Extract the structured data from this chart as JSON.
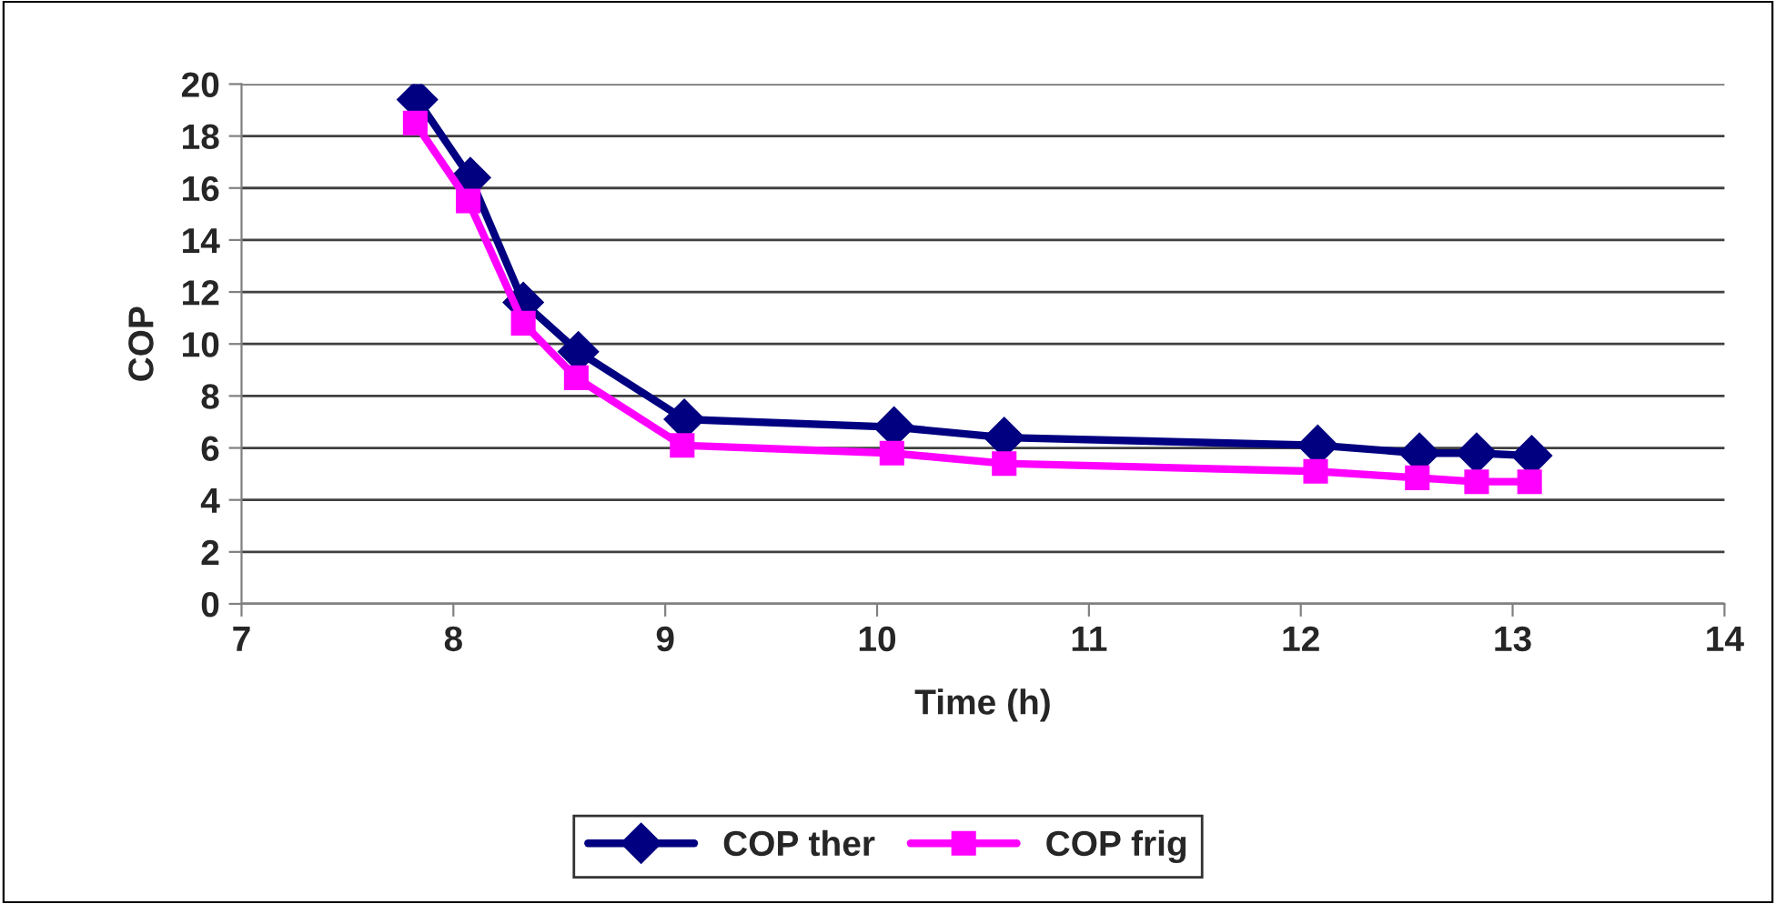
{
  "chart_data": {
    "type": "line",
    "xlabel": "Time (h)",
    "ylabel": "COP",
    "xlim": [
      7,
      14
    ],
    "xticks": [
      7,
      8,
      9,
      10,
      11,
      12,
      13,
      14
    ],
    "ylim": [
      0,
      20
    ],
    "yticks": [
      0,
      2,
      4,
      6,
      8,
      10,
      12,
      14,
      16,
      18,
      20
    ],
    "grid": "y",
    "legend": "bottom",
    "line_style": "solid",
    "series": [
      {
        "name": "COP ther",
        "color": "#000080",
        "marker": "diamond",
        "x": [
          7.83,
          8.08,
          8.33,
          8.59,
          9.09,
          10.08,
          10.6,
          12.08,
          12.56,
          12.83,
          13.09
        ],
        "values": [
          19.4,
          16.4,
          11.6,
          9.7,
          7.1,
          6.8,
          6.4,
          6.1,
          5.8,
          5.8,
          5.7
        ]
      },
      {
        "name": "COP frig",
        "color": "#ff00ff",
        "marker": "square",
        "x": [
          7.82,
          8.07,
          8.33,
          8.58,
          9.08,
          10.07,
          10.6,
          12.07,
          12.55,
          12.83,
          13.08
        ],
        "values": [
          18.5,
          15.5,
          10.8,
          8.7,
          6.1,
          5.8,
          5.4,
          5.1,
          4.85,
          4.7,
          4.7
        ]
      }
    ]
  }
}
